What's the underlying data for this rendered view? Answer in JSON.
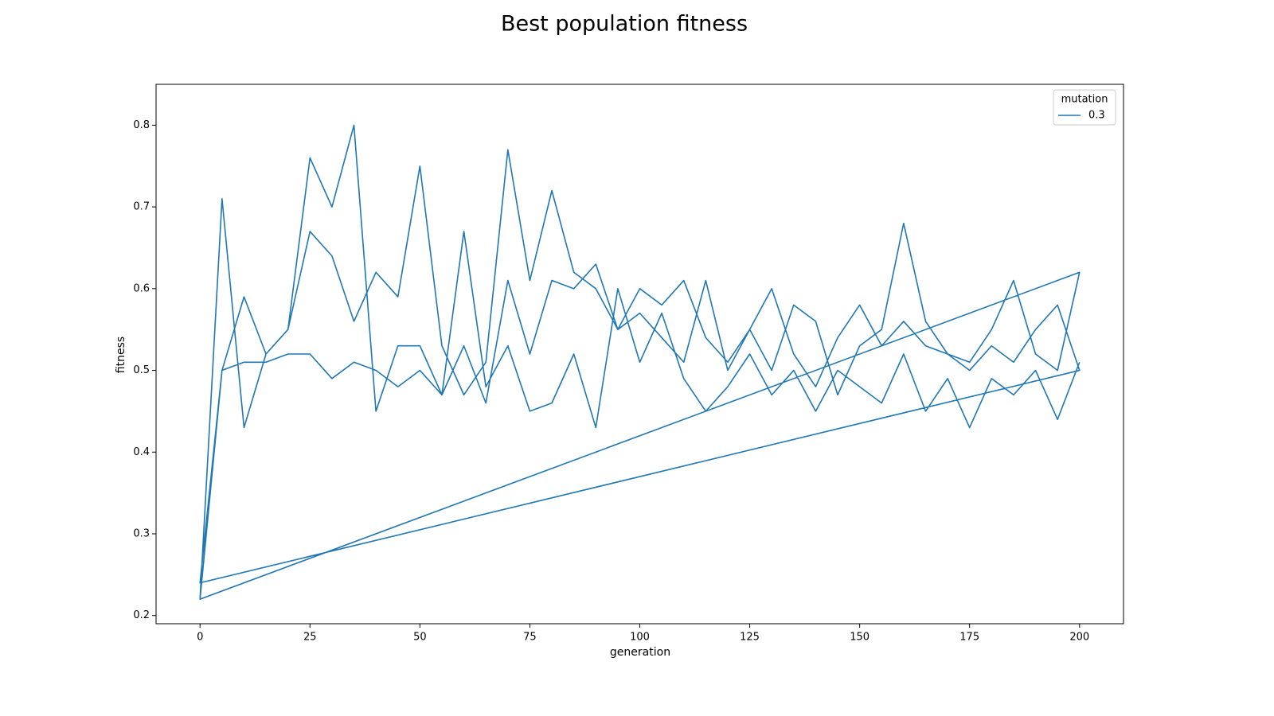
{
  "chart_data": {
    "type": "line",
    "title": "Best population fitness",
    "x_label": "generation",
    "y_label": "fitness",
    "legend_title": "mutation",
    "legend_position": "upper right",
    "xlim": [
      -10,
      210
    ],
    "xticks": [
      0,
      25,
      50,
      75,
      100,
      125,
      150,
      175,
      200
    ],
    "ylim": [
      0.19,
      0.85
    ],
    "yticks": [
      0.2,
      0.3,
      0.4,
      0.5,
      0.6,
      0.7,
      0.8
    ],
    "x": [
      0,
      5,
      10,
      15,
      20,
      25,
      30,
      35,
      40,
      45,
      50,
      55,
      60,
      65,
      70,
      75,
      80,
      85,
      90,
      95,
      100,
      105,
      110,
      115,
      120,
      125,
      130,
      135,
      140,
      145,
      150,
      155,
      160,
      165,
      170,
      175,
      180,
      185,
      190,
      195,
      200,
      0,
      5,
      10,
      15,
      20,
      25,
      30,
      35,
      40,
      45,
      50,
      55,
      60,
      65,
      70,
      75,
      80,
      85,
      90,
      95,
      100,
      105,
      110,
      115,
      120,
      125,
      130,
      135,
      140,
      145,
      150,
      155,
      160,
      165,
      170,
      175,
      180,
      185,
      190,
      195,
      200,
      0,
      5,
      10,
      15,
      20,
      25,
      30,
      35,
      40,
      45,
      50,
      55,
      60,
      65,
      70,
      75,
      80,
      85,
      90,
      95,
      100,
      105,
      110,
      115,
      120,
      125,
      130,
      135,
      140,
      145,
      150,
      155,
      160,
      165,
      170,
      175,
      180,
      185,
      190,
      195,
      200
    ],
    "series": [
      {
        "name": "0.3",
        "color": "#1f77b4",
        "values": [
          0.22,
          0.5,
          0.59,
          0.52,
          0.55,
          0.76,
          0.7,
          0.8,
          0.45,
          0.53,
          0.53,
          0.47,
          0.53,
          0.46,
          0.61,
          0.52,
          0.61,
          0.6,
          0.63,
          0.55,
          0.6,
          0.58,
          0.61,
          0.54,
          0.51,
          0.55,
          0.6,
          0.52,
          0.48,
          0.54,
          0.58,
          0.53,
          0.56,
          0.53,
          0.52,
          0.51,
          0.55,
          0.61,
          0.52,
          0.5,
          0.62,
          0.22,
          0.71,
          0.43,
          0.52,
          0.55,
          0.67,
          0.64,
          0.56,
          0.62,
          0.59,
          0.75,
          0.53,
          0.47,
          0.51,
          0.77,
          0.61,
          0.72,
          0.62,
          0.6,
          0.55,
          0.57,
          0.54,
          0.51,
          0.61,
          0.5,
          0.55,
          0.5,
          0.58,
          0.56,
          0.47,
          0.53,
          0.55,
          0.68,
          0.56,
          0.52,
          0.5,
          0.53,
          0.51,
          0.55,
          0.58,
          0.5,
          0.24,
          0.5,
          0.51,
          0.51,
          0.52,
          0.52,
          0.49,
          0.51,
          0.5,
          0.48,
          0.5,
          0.47,
          0.67,
          0.48,
          0.53,
          0.45,
          0.46,
          0.52,
          0.43,
          0.6,
          0.51,
          0.57,
          0.49,
          0.45,
          0.48,
          0.52,
          0.47,
          0.5,
          0.45,
          0.5,
          0.48,
          0.46,
          0.52,
          0.45,
          0.49,
          0.43,
          0.49,
          0.47,
          0.5,
          0.44,
          0.51
        ]
      }
    ]
  }
}
